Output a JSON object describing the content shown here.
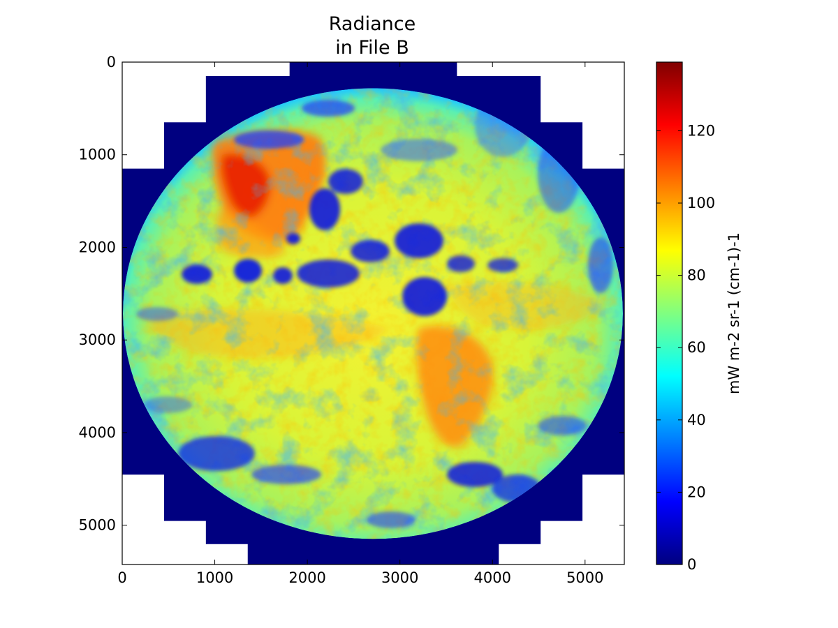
{
  "chart_data": {
    "type": "heatmap",
    "title": [
      "Radiance",
      "in File B"
    ],
    "xlabel": "",
    "ylabel": "",
    "xlim": [
      0,
      5424
    ],
    "ylim": [
      5424,
      0
    ],
    "x_ticks": [
      0,
      1000,
      2000,
      3000,
      4000,
      5000
    ],
    "y_ticks": [
      0,
      1000,
      2000,
      3000,
      4000,
      5000
    ],
    "y_axis_inverted": true,
    "grid": false,
    "image_content": "full-disk Earth radiance image (western hemisphere) surrounded by a stepped fill-value border",
    "fill_value": 0,
    "fill_region_rows": [
      {
        "y": [
          0,
          150
        ],
        "x": [
          1808,
          3616
        ]
      },
      {
        "y": [
          150,
          650
        ],
        "x": [
          904,
          4520
        ]
      },
      {
        "y": [
          650,
          1150
        ],
        "x": [
          452,
          4972
        ]
      },
      {
        "y": [
          1150,
          4450
        ],
        "x": [
          0,
          5424
        ]
      },
      {
        "y": [
          4450,
          4950
        ],
        "x": [
          452,
          4972
        ]
      },
      {
        "y": [
          4950,
          5200
        ],
        "x": [
          904,
          4520
        ]
      },
      {
        "y": [
          5200,
          5424
        ],
        "x": [
          1356,
          4068
        ]
      }
    ],
    "colorbar": {
      "label": "mW m-2 sr-1 (cm-1)-1",
      "range": [
        0,
        139
      ],
      "ticks": [
        0,
        20,
        40,
        60,
        80,
        100,
        120
      ],
      "colormap": "jet",
      "colormap_stops": [
        "#000080",
        "#0000ff",
        "#0080ff",
        "#00ffff",
        "#80ff80",
        "#ffff00",
        "#ff8000",
        "#ff0000",
        "#800000"
      ]
    }
  }
}
